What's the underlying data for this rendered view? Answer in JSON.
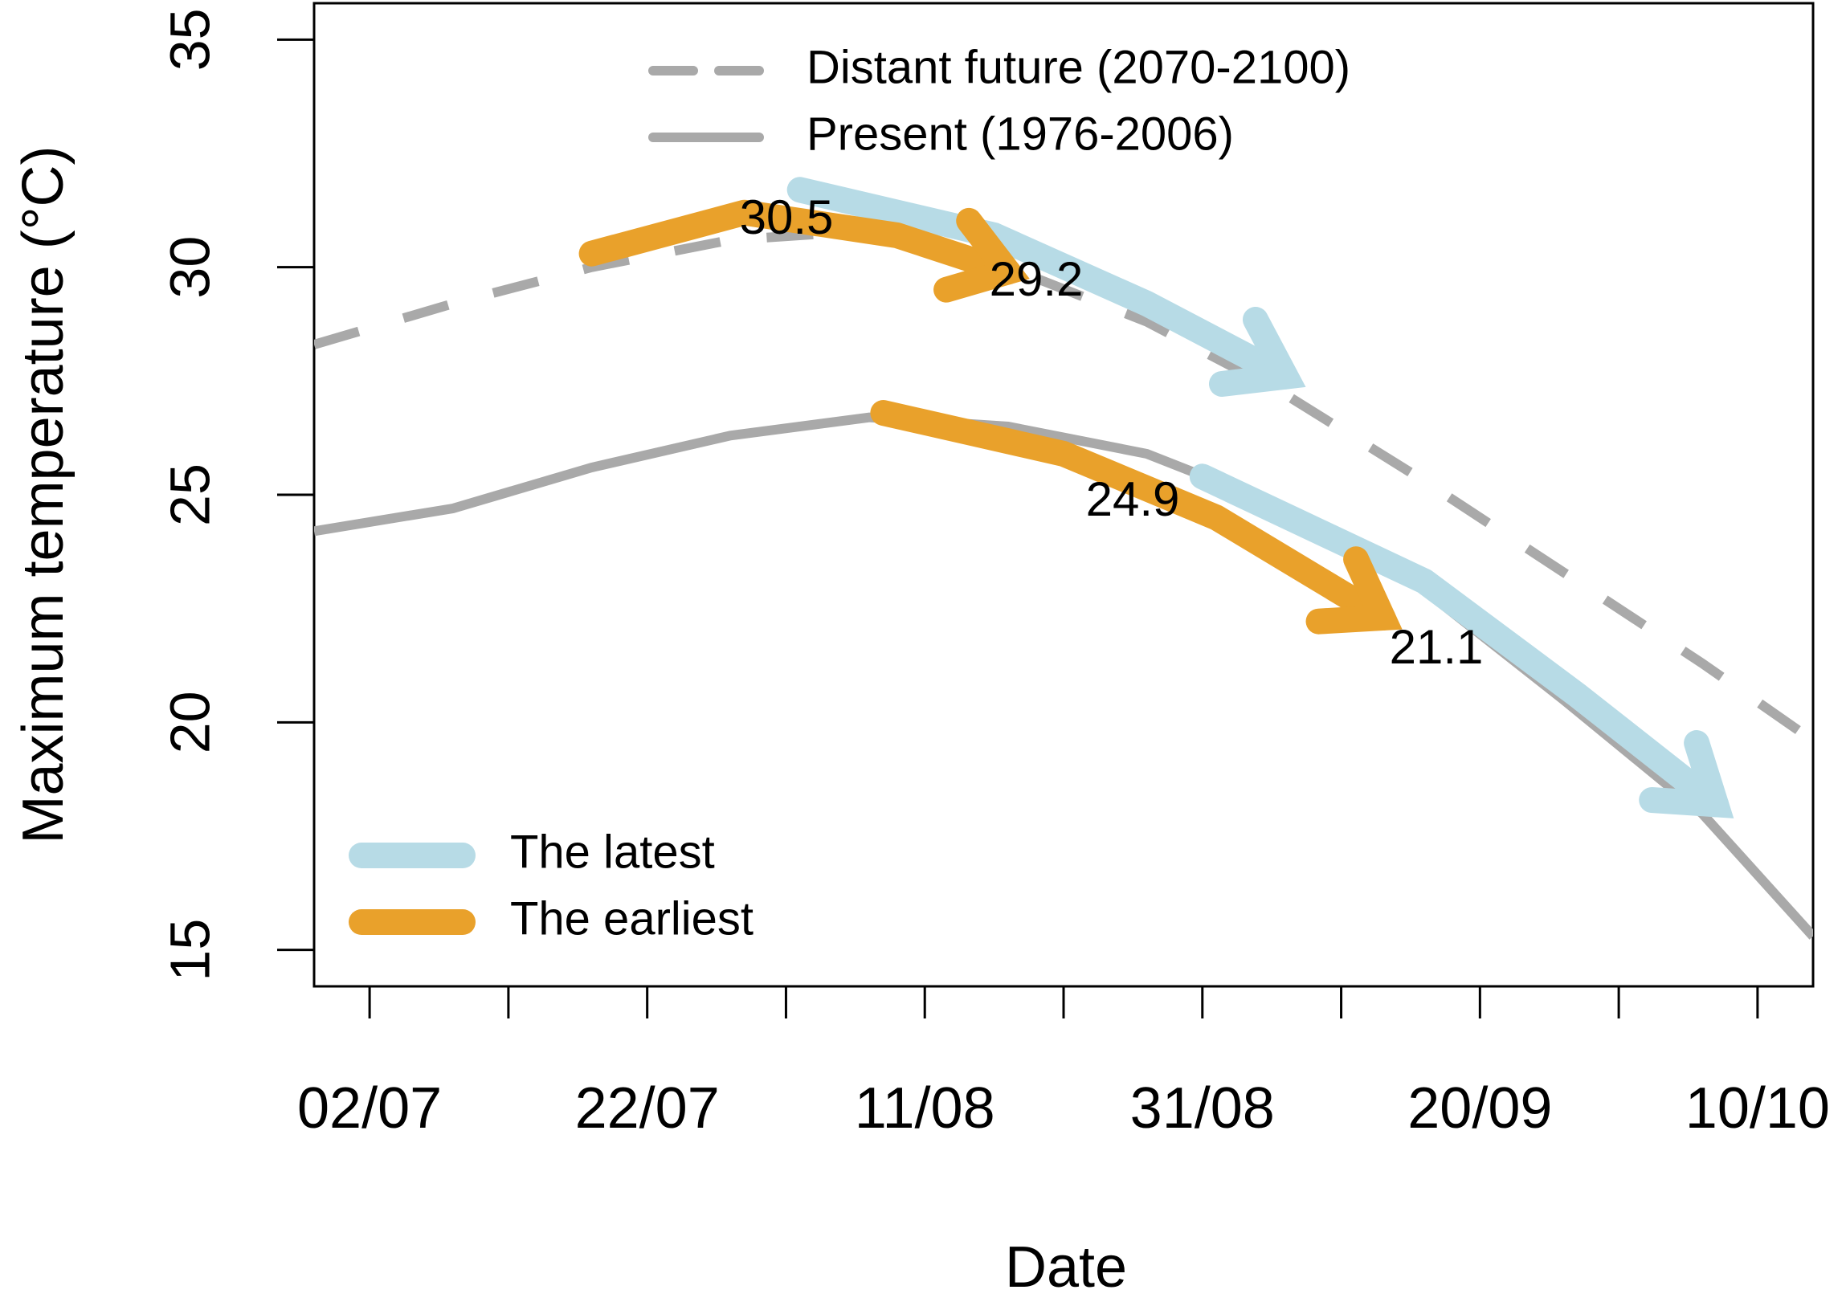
{
  "chart_data": {
    "type": "line",
    "x_label": "Date",
    "y_label": "Maximum temperature (°C)",
    "xlim": [
      "28/06",
      "14/10"
    ],
    "xticks": [
      "02/07",
      "22/07",
      "11/08",
      "31/08",
      "20/09",
      "10/10"
    ],
    "xminorticks": [
      "12/07",
      "01/08",
      "21/08",
      "10/09",
      "30/09"
    ],
    "ylim": [
      14.2,
      35.8
    ],
    "yticks": [
      15,
      20,
      25,
      30,
      35
    ],
    "legend": "top",
    "series": [
      {
        "name": "Distant future (2070-2100)",
        "color": "#a9a9a9",
        "dashed": true,
        "x": [
          "28/06",
          "08/07",
          "18/07",
          "28/07",
          "07/08",
          "17/08",
          "27/08",
          "06/09",
          "16/09",
          "26/09",
          "06/10",
          "14/10"
        ],
        "values": [
          28.3,
          29.2,
          30.0,
          30.6,
          30.8,
          30.0,
          28.8,
          27.2,
          25.3,
          23.3,
          21.3,
          19.6
        ]
      },
      {
        "name": "Present (1976-2006)",
        "color": "#a9a9a9",
        "dashed": false,
        "x": [
          "28/06",
          "08/07",
          "18/07",
          "28/07",
          "07/08",
          "17/08",
          "27/08",
          "06/09",
          "16/09",
          "26/09",
          "06/10",
          "14/10"
        ],
        "values": [
          24.2,
          24.7,
          25.6,
          26.3,
          26.7,
          26.5,
          25.9,
          24.7,
          22.9,
          20.5,
          18.0,
          15.3
        ]
      }
    ],
    "arrow_legend": "bottom-left",
    "arrows": [
      {
        "name": "The latest",
        "color": "#b7dbe6",
        "paths": [
          {
            "x": [
              "02/08",
              "16/08",
              "27/08",
              "06/09"
            ],
            "values": [
              31.7,
              30.7,
              29.2,
              27.6
            ]
          },
          {
            "x": [
              "31/08",
              "16/09",
              "27/09",
              "07/10"
            ],
            "values": [
              25.4,
              23.1,
              20.6,
              18.2
            ]
          }
        ]
      },
      {
        "name": "The earliest",
        "color": "#e9a12b",
        "paths": [
          {
            "x": [
              "18/07",
              "29/07",
              "09/08",
              "17/08"
            ],
            "values": [
              30.3,
              31.2,
              30.7,
              29.9
            ]
          },
          {
            "x": [
              "08/08",
              "21/08",
              "01/09",
              "13/09"
            ],
            "values": [
              26.8,
              25.9,
              24.5,
              22.3
            ]
          }
        ]
      }
    ],
    "annotations": [
      30.5,
      29.2,
      24.9,
      21.1
    ]
  }
}
